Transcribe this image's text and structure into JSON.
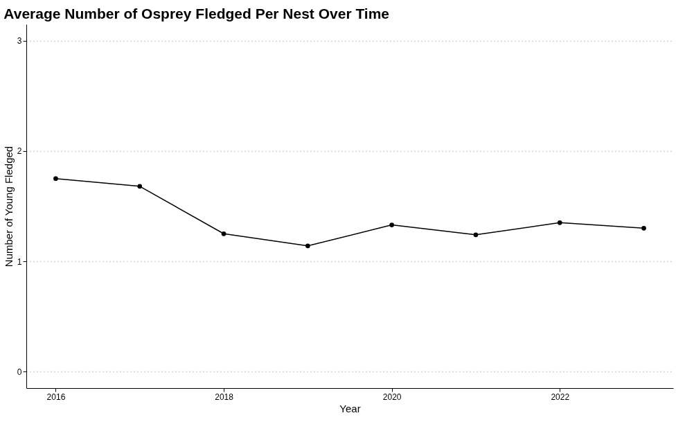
{
  "chart_data": {
    "type": "line",
    "title": "Average Number of Osprey Fledged Per Nest Over Time",
    "xlabel": "Year",
    "ylabel": "Number of Young Fledged",
    "x": [
      2016,
      2017,
      2018,
      2019,
      2020,
      2021,
      2022,
      2023
    ],
    "series": [
      {
        "color": "#000000",
        "values": [
          1.75,
          1.68,
          1.25,
          1.14,
          1.33,
          1.24,
          1.35,
          1.3
        ]
      }
    ],
    "xlim": [
      2015.65,
      2023.35
    ],
    "xticks": [
      2016,
      2018,
      2020,
      2022
    ],
    "ylim": [
      -0.15,
      3.15
    ],
    "yticks": [
      0,
      1,
      2,
      3
    ],
    "grid": "y",
    "marker": "circle",
    "line_style": "solid"
  }
}
